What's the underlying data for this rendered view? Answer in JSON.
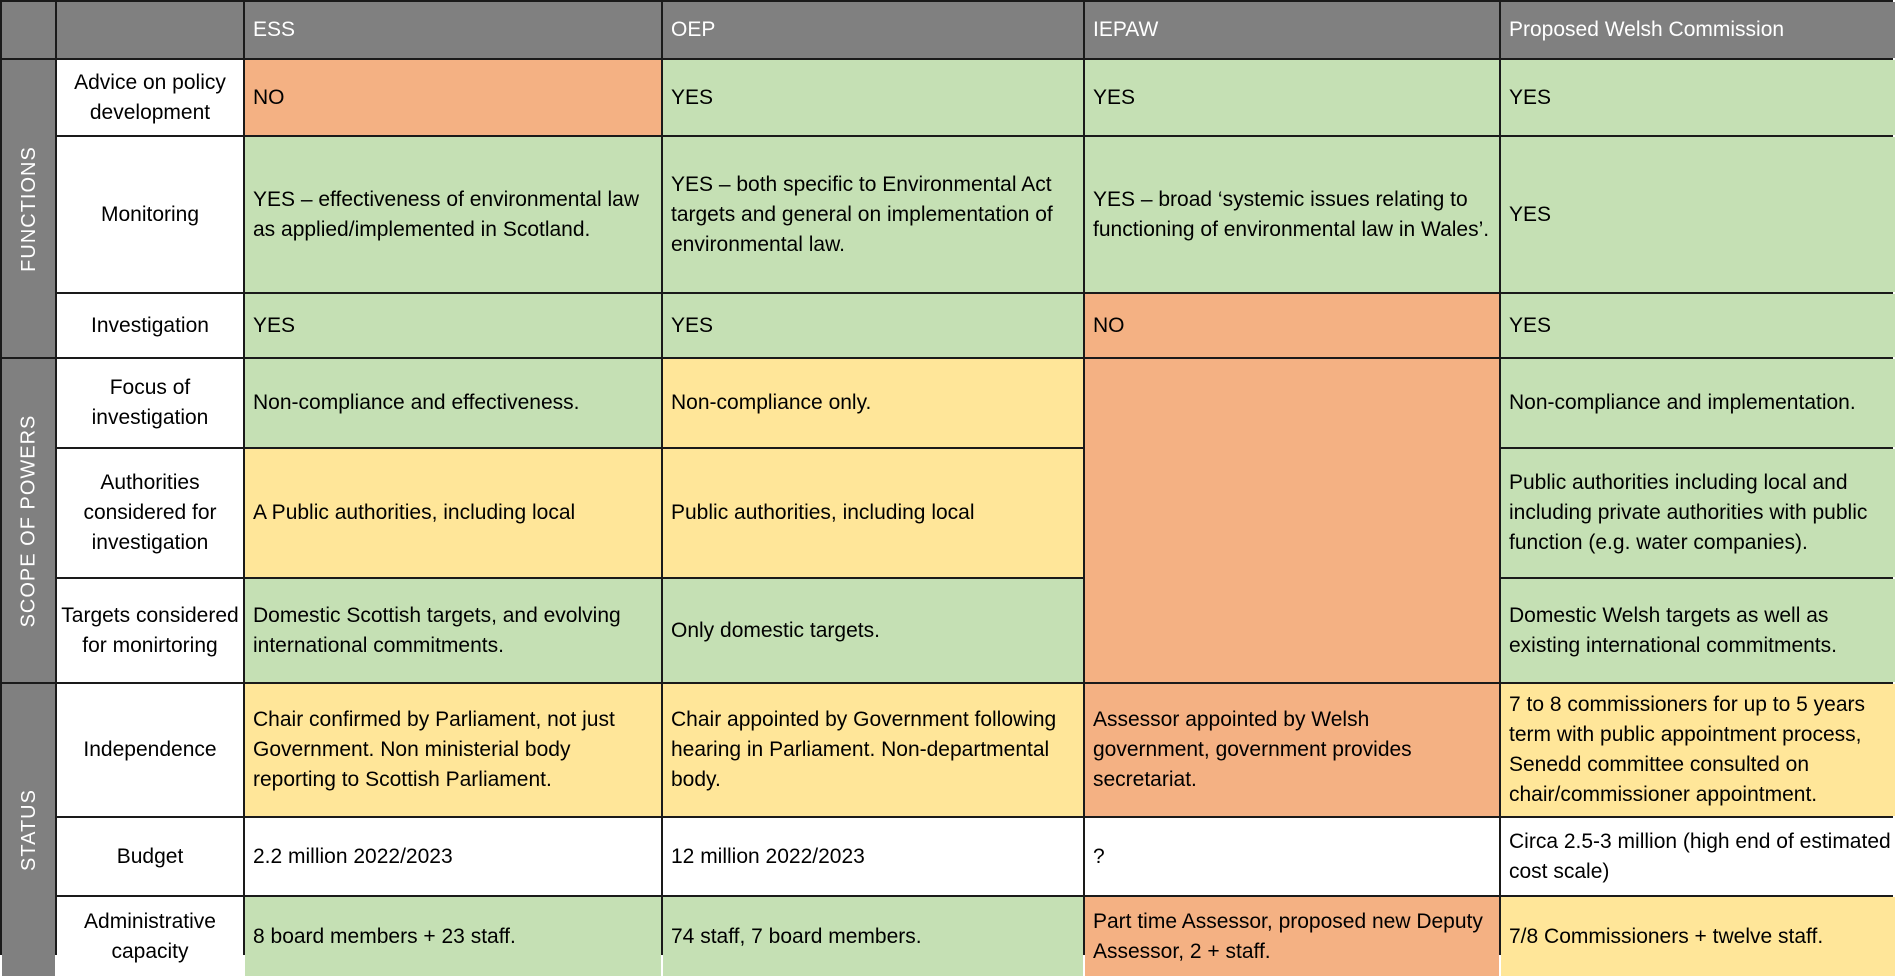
{
  "colors": {
    "header": "#808080",
    "green": "#C5E0B4",
    "orange": "#F4B183",
    "yellow": "#FFE699",
    "white": "#FFFFFF"
  },
  "header": {
    "columns": [
      "ESS",
      "OEP",
      "IEPAW",
      "Proposed Welsh Commission"
    ]
  },
  "sections": {
    "functions": "FUNCTIONS",
    "scope": "SCOPE OF POWERS",
    "status": "STATUS"
  },
  "rows": [
    {
      "label": "Advice on policy development",
      "cells": [
        "NO",
        "YES",
        "YES",
        "YES"
      ],
      "colors": [
        "orange",
        "green",
        "green",
        "green"
      ]
    },
    {
      "label": "Monitoring",
      "cells": [
        "YES – effectiveness of environmental law as applied/implemented in Scotland.",
        "YES – both specific to Environmental Act targets and general on implementation of environmental law.",
        "YES – broad ‘systemic issues relating to functioning of environmental law in Wales’.",
        "YES"
      ],
      "colors": [
        "green",
        "green",
        "green",
        "green"
      ]
    },
    {
      "label": "Investigation",
      "cells": [
        "YES",
        "YES",
        "NO",
        "YES"
      ],
      "colors": [
        "green",
        "green",
        "orange",
        "green"
      ]
    },
    {
      "label": "Focus of investigation",
      "cells": [
        "Non-compliance and effectiveness.",
        "Non-compliance only.",
        "",
        "Non-compliance and implementation."
      ],
      "colors": [
        "green",
        "yellow",
        "orange",
        "green"
      ]
    },
    {
      "label": "Authorities considered for investigation",
      "cells": [
        "A Public authorities, including local",
        "Public authorities, including local",
        "",
        "Public authorities including local and including private authorities with public function (e.g. water companies)."
      ],
      "colors": [
        "yellow",
        "yellow",
        "orange",
        "green"
      ]
    },
    {
      "label": "Targets considered for monirtoring",
      "cells": [
        "Domestic Scottish targets, and evolving international commitments.",
        "Only domestic targets.",
        "",
        "Domestic Welsh targets as well as existing international commitments."
      ],
      "colors": [
        "green",
        "green",
        "orange",
        "green"
      ]
    },
    {
      "label": "Independence",
      "cells": [
        "Chair confirmed by Parliament, not just Government. Non ministerial body reporting to Scottish Parliament.",
        "Chair appointed by Government following hearing in Parliament. Non-departmental body.",
        "Assessor appointed by Welsh government, government provides secretariat.",
        "7 to 8 commissioners for up to 5 years term with public appointment process, Senedd committee consulted on chair/commissioner appointment."
      ],
      "colors": [
        "yellow",
        "yellow",
        "orange",
        "yellow"
      ]
    },
    {
      "label": "Budget",
      "cells": [
        "2.2 million 2022/2023",
        "12 million 2022/2023",
        "?",
        "Circa 2.5-3 million (high end of estimated cost scale)"
      ],
      "colors": [
        "white",
        "white",
        "white",
        "white"
      ]
    },
    {
      "label": "Administrative capacity",
      "cells": [
        "8 board members + 23 staff.",
        "74 staff, 7 board members.",
        "Part time Assessor, proposed new Deputy Assessor, 2 + staff.",
        "7/8 Commissioners + twelve staff."
      ],
      "colors": [
        "green",
        "green",
        "orange",
        "yellow"
      ]
    }
  ]
}
